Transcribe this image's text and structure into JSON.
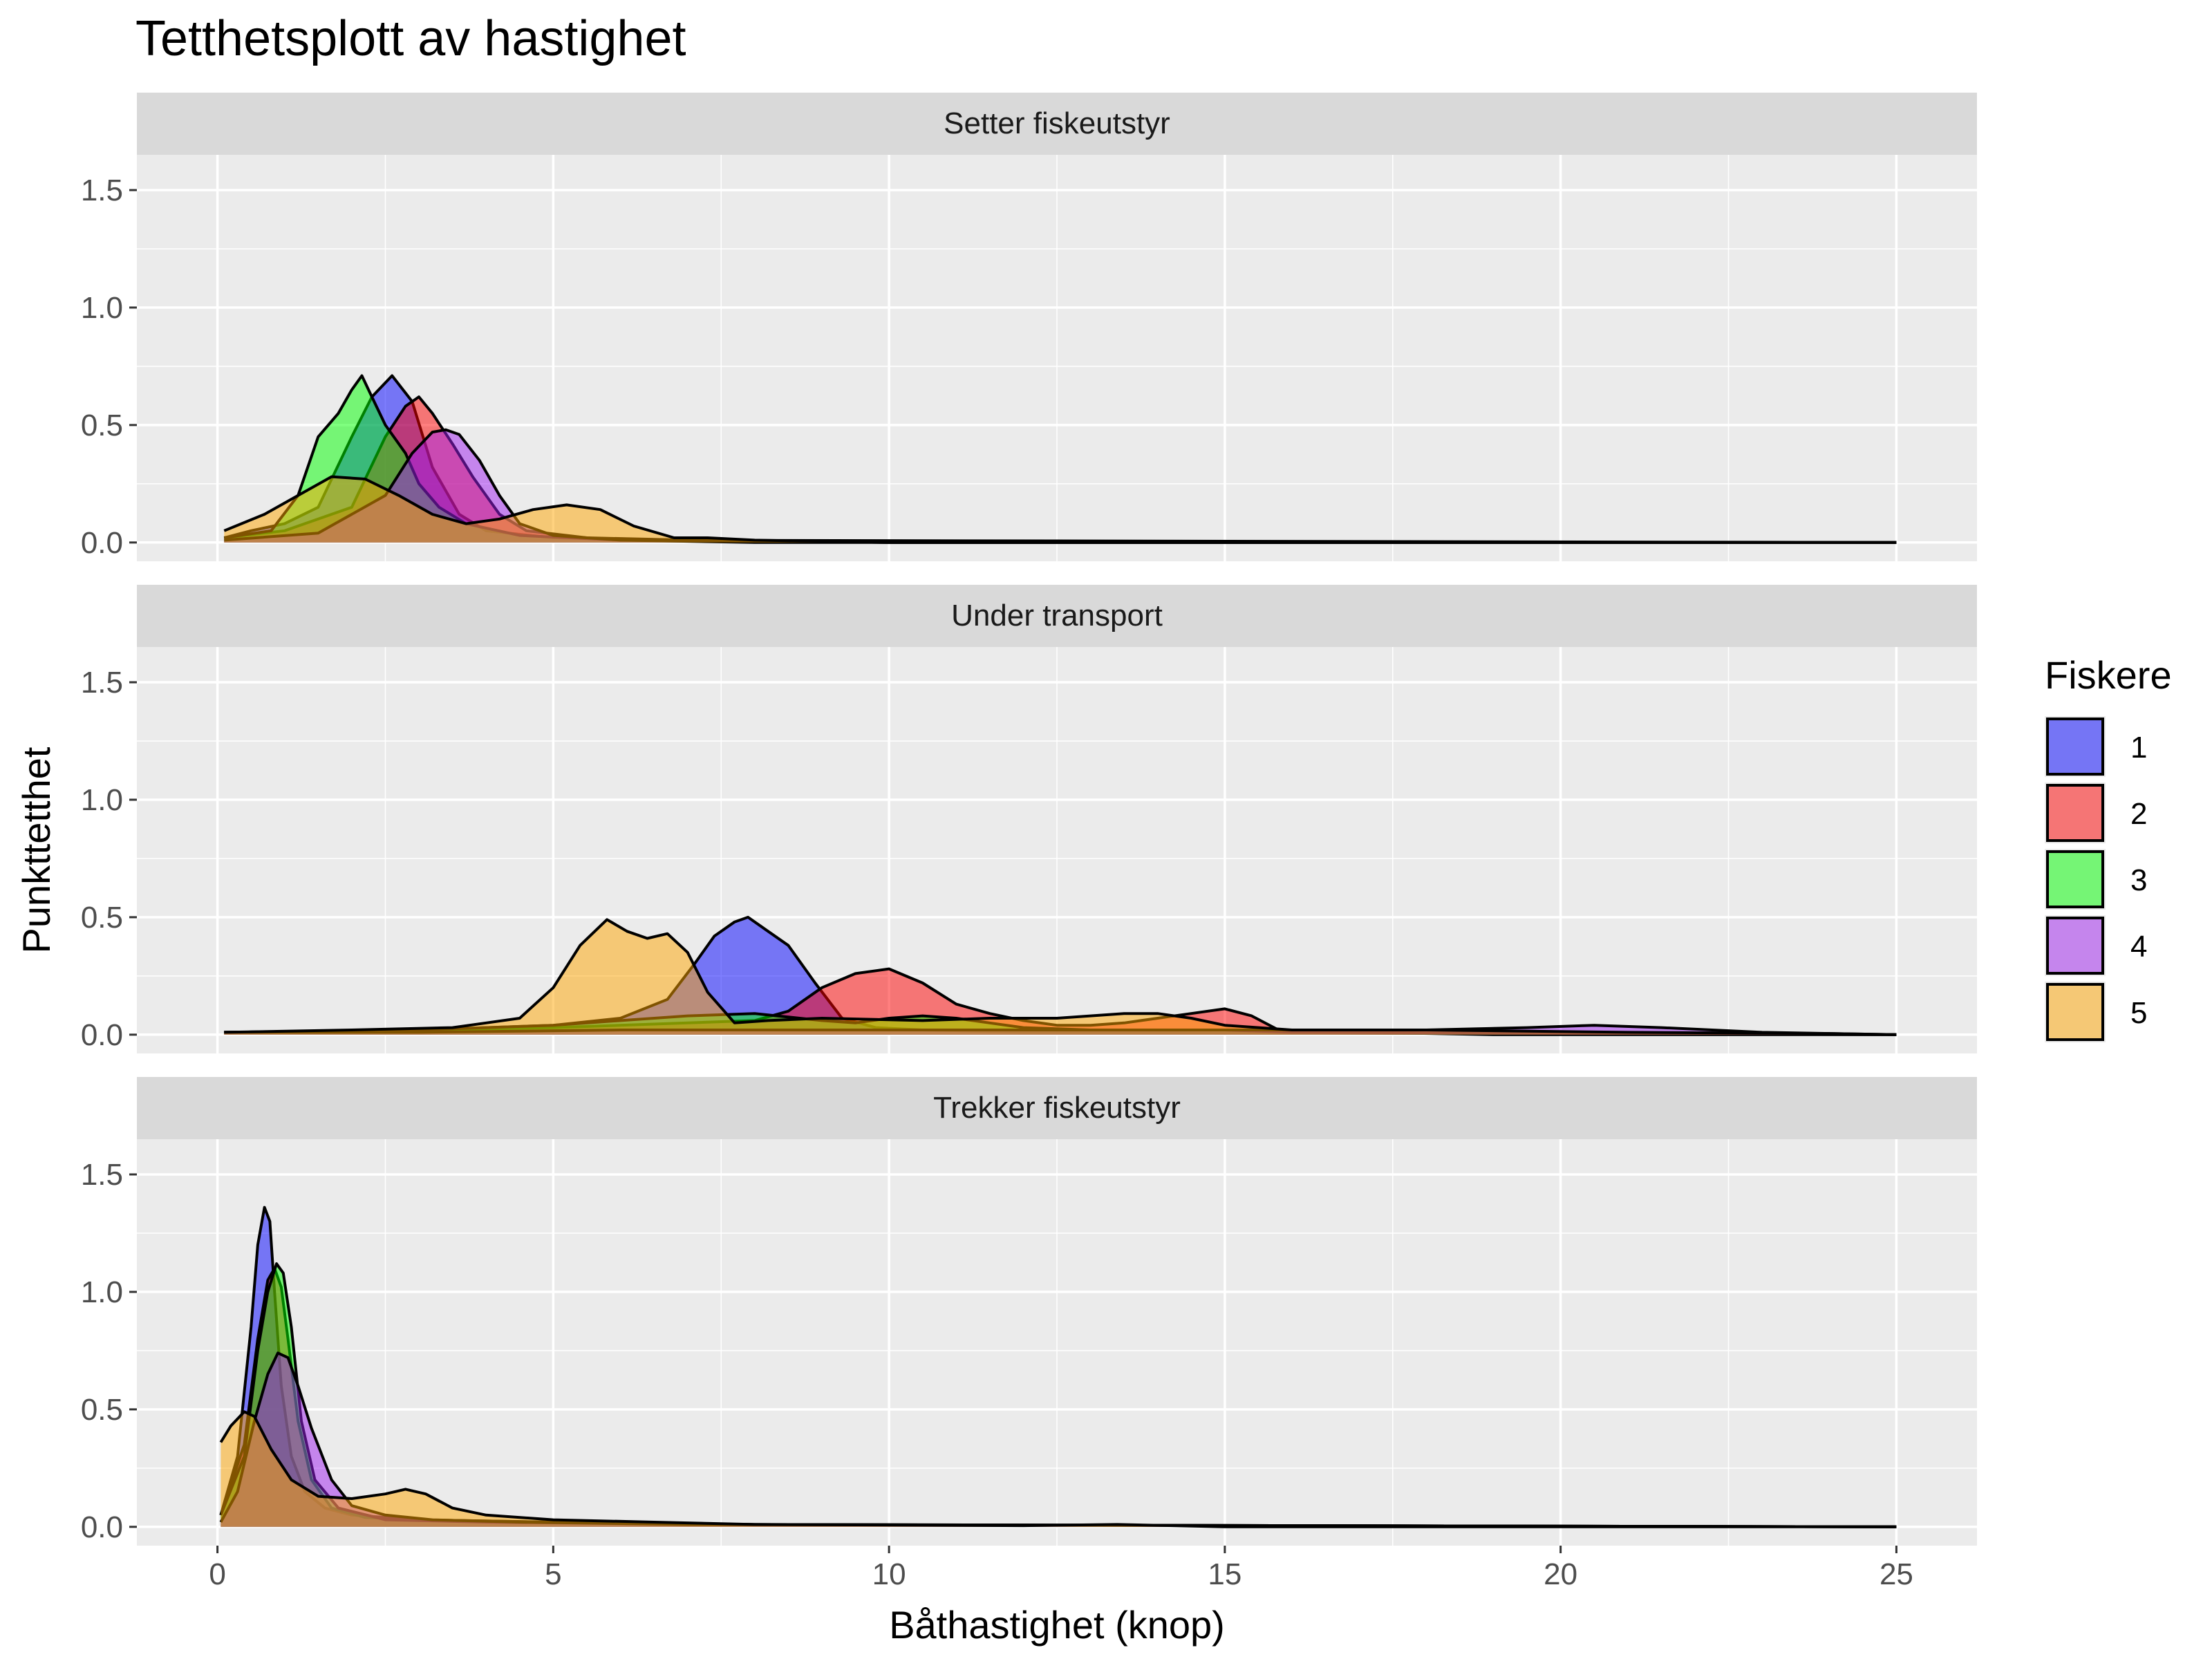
{
  "chart_data": {
    "type": "area",
    "title": "Tetthetsplott av hastighet",
    "xlabel": "Båthastighet (knop)",
    "ylabel": "Punkttetthet",
    "xlim": [
      -1.2,
      26.2
    ],
    "ylim": [
      -0.08,
      1.65
    ],
    "xticks": [
      0,
      5,
      10,
      15,
      20,
      25
    ],
    "xtick_labels": [
      "0",
      "5",
      "10",
      "15",
      "20",
      "25"
    ],
    "yticks": [
      0.0,
      0.5,
      1.0,
      1.5
    ],
    "ytick_labels": [
      "0.0",
      "0.5",
      "1.0",
      "1.5"
    ],
    "grid": true,
    "legend": {
      "title": "Fiskere",
      "position": "right",
      "entries": [
        {
          "label": "1",
          "color": "#0000FF"
        },
        {
          "label": "2",
          "color": "#FF0000"
        },
        {
          "label": "3",
          "color": "#00FF00"
        },
        {
          "label": "4",
          "color": "#A020F0"
        },
        {
          "label": "5",
          "color": "#FFA500"
        }
      ]
    },
    "fill_alpha": 0.5,
    "panels": [
      {
        "label": "Setter fiskeutstyr",
        "series": [
          {
            "name": "1",
            "x": [
              0.1,
              0.5,
              1.0,
              1.5,
              2.0,
              2.3,
              2.6,
              2.9,
              3.2,
              3.6,
              4.0,
              5.0,
              7.0,
              10.0,
              25.0
            ],
            "y": [
              0.02,
              0.05,
              0.08,
              0.15,
              0.45,
              0.62,
              0.71,
              0.6,
              0.32,
              0.12,
              0.05,
              0.02,
              0.01,
              0.0,
              0.0
            ]
          },
          {
            "name": "2",
            "x": [
              0.1,
              1.0,
              2.0,
              2.5,
              2.8,
              3.0,
              3.2,
              3.5,
              3.8,
              4.2,
              4.6,
              5.5,
              7.0,
              10.0,
              25.0
            ],
            "y": [
              0.02,
              0.05,
              0.15,
              0.45,
              0.58,
              0.62,
              0.55,
              0.42,
              0.28,
              0.12,
              0.05,
              0.02,
              0.01,
              0.0,
              0.0
            ]
          },
          {
            "name": "3",
            "x": [
              0.1,
              0.8,
              1.2,
              1.5,
              1.8,
              2.0,
              2.15,
              2.3,
              2.5,
              2.8,
              3.0,
              3.3,
              3.7,
              4.5,
              6.0,
              25.0
            ],
            "y": [
              0.02,
              0.05,
              0.2,
              0.45,
              0.55,
              0.65,
              0.71,
              0.62,
              0.5,
              0.38,
              0.25,
              0.15,
              0.08,
              0.03,
              0.01,
              0.0
            ]
          },
          {
            "name": "4",
            "x": [
              0.1,
              1.5,
              2.5,
              2.9,
              3.2,
              3.4,
              3.6,
              3.9,
              4.2,
              4.5,
              5.0,
              6.0,
              8.0,
              25.0
            ],
            "y": [
              0.01,
              0.04,
              0.2,
              0.38,
              0.47,
              0.48,
              0.46,
              0.35,
              0.2,
              0.08,
              0.03,
              0.01,
              0.0,
              0.0
            ]
          },
          {
            "name": "5",
            "x": [
              0.1,
              0.7,
              1.2,
              1.7,
              2.2,
              2.7,
              3.2,
              3.7,
              4.2,
              4.7,
              5.2,
              5.7,
              6.2,
              6.8,
              7.3,
              8.0,
              10.0,
              25.0
            ],
            "y": [
              0.05,
              0.12,
              0.2,
              0.28,
              0.27,
              0.2,
              0.12,
              0.08,
              0.1,
              0.14,
              0.16,
              0.14,
              0.07,
              0.02,
              0.02,
              0.01,
              0.0,
              0.0
            ]
          }
        ]
      },
      {
        "label": "Under transport",
        "series": [
          {
            "name": "1",
            "x": [
              0.1,
              3.0,
              5.0,
              6.0,
              6.7,
              7.1,
              7.4,
              7.7,
              7.9,
              8.2,
              8.5,
              8.9,
              9.3,
              9.8,
              10.5,
              12.0,
              25.0
            ],
            "y": [
              0.01,
              0.02,
              0.04,
              0.07,
              0.15,
              0.3,
              0.42,
              0.48,
              0.5,
              0.44,
              0.38,
              0.22,
              0.07,
              0.03,
              0.02,
              0.01,
              0.0
            ]
          },
          {
            "name": "2",
            "x": [
              0.1,
              3.0,
              5.0,
              7.0,
              8.0,
              8.5,
              9.0,
              9.5,
              10.0,
              10.5,
              11.0,
              11.5,
              12.0,
              12.5,
              13.0,
              13.5,
              14.0,
              14.5,
              15.0,
              15.4,
              15.8,
              17.0,
              19.0,
              25.0
            ],
            "y": [
              0.01,
              0.02,
              0.03,
              0.05,
              0.06,
              0.1,
              0.2,
              0.26,
              0.28,
              0.22,
              0.13,
              0.09,
              0.06,
              0.04,
              0.04,
              0.05,
              0.07,
              0.09,
              0.11,
              0.08,
              0.02,
              0.01,
              0.0,
              0.0
            ]
          },
          {
            "name": "3",
            "x": [
              0.1,
              3.0,
              5.0,
              7.0,
              8.0,
              9.0,
              9.5,
              10.0,
              10.5,
              11.0,
              11.5,
              12.0,
              13.0,
              14.0,
              15.0,
              16.0,
              25.0
            ],
            "y": [
              0.01,
              0.02,
              0.04,
              0.08,
              0.09,
              0.06,
              0.05,
              0.07,
              0.08,
              0.07,
              0.05,
              0.03,
              0.02,
              0.02,
              0.02,
              0.01,
              0.0
            ]
          },
          {
            "name": "4",
            "x": [
              0.1,
              3.0,
              6.0,
              8.0,
              10.0,
              12.0,
              14.0,
              16.0,
              18.0,
              19.5,
              20.5,
              21.5,
              23.0,
              24.0,
              25.0
            ],
            "y": [
              0.01,
              0.01,
              0.02,
              0.02,
              0.02,
              0.02,
              0.02,
              0.02,
              0.02,
              0.03,
              0.04,
              0.03,
              0.01,
              0.005,
              0.0
            ]
          },
          {
            "name": "5",
            "x": [
              0.1,
              2.0,
              3.5,
              4.0,
              4.5,
              5.0,
              5.4,
              5.8,
              6.1,
              6.4,
              6.7,
              7.0,
              7.3,
              7.7,
              8.2,
              9.0,
              10.5,
              11.5,
              12.5,
              13.0,
              13.5,
              14.0,
              14.5,
              15.0,
              16.0,
              18.0,
              21.0,
              24.0,
              25.0
            ],
            "y": [
              0.01,
              0.02,
              0.03,
              0.05,
              0.07,
              0.2,
              0.38,
              0.49,
              0.44,
              0.41,
              0.43,
              0.35,
              0.18,
              0.05,
              0.06,
              0.07,
              0.06,
              0.07,
              0.07,
              0.08,
              0.09,
              0.09,
              0.07,
              0.04,
              0.02,
              0.02,
              0.01,
              0.005,
              0.0
            ]
          }
        ]
      },
      {
        "label": "Trekker fiskeutstyr",
        "series": [
          {
            "name": "1",
            "x": [
              0.05,
              0.3,
              0.5,
              0.6,
              0.7,
              0.78,
              0.85,
              0.95,
              1.1,
              1.3,
              1.6,
              2.0,
              3.0,
              5.0,
              8.0,
              25.0
            ],
            "y": [
              0.05,
              0.3,
              0.85,
              1.2,
              1.36,
              1.3,
              1.0,
              0.6,
              0.3,
              0.15,
              0.08,
              0.05,
              0.03,
              0.02,
              0.01,
              0.0
            ]
          },
          {
            "name": "2",
            "x": [
              0.05,
              0.4,
              0.6,
              0.75,
              0.85,
              0.95,
              1.05,
              1.2,
              1.4,
              1.7,
              2.2,
              3.0,
              5.0,
              8.0,
              25.0
            ],
            "y": [
              0.05,
              0.35,
              0.8,
              1.05,
              1.1,
              1.02,
              0.8,
              0.45,
              0.2,
              0.08,
              0.04,
              0.03,
              0.02,
              0.01,
              0.0
            ]
          },
          {
            "name": "3",
            "x": [
              0.05,
              0.4,
              0.6,
              0.75,
              0.88,
              0.98,
              1.1,
              1.25,
              1.45,
              1.8,
              2.5,
              4.0,
              7.0,
              25.0
            ],
            "y": [
              0.05,
              0.3,
              0.75,
              1.0,
              1.12,
              1.08,
              0.85,
              0.45,
              0.2,
              0.08,
              0.03,
              0.02,
              0.01,
              0.0
            ]
          },
          {
            "name": "4",
            "x": [
              0.05,
              0.3,
              0.55,
              0.75,
              0.9,
              1.05,
              1.2,
              1.4,
              1.7,
              2.0,
              2.5,
              3.2,
              4.5,
              7.0,
              25.0
            ],
            "y": [
              0.02,
              0.15,
              0.45,
              0.65,
              0.74,
              0.72,
              0.6,
              0.42,
              0.2,
              0.09,
              0.05,
              0.03,
              0.02,
              0.01,
              0.0
            ]
          },
          {
            "name": "5",
            "x": [
              0.05,
              0.2,
              0.4,
              0.55,
              0.8,
              1.1,
              1.5,
              2.0,
              2.5,
              2.8,
              3.1,
              3.5,
              4.0,
              5.0,
              6.5,
              8.0,
              12.0,
              13.4,
              15.0,
              25.0
            ],
            "y": [
              0.36,
              0.43,
              0.49,
              0.47,
              0.33,
              0.2,
              0.13,
              0.12,
              0.14,
              0.16,
              0.14,
              0.08,
              0.05,
              0.03,
              0.02,
              0.01,
              0.005,
              0.01,
              0.0,
              0.0
            ]
          }
        ]
      }
    ]
  }
}
